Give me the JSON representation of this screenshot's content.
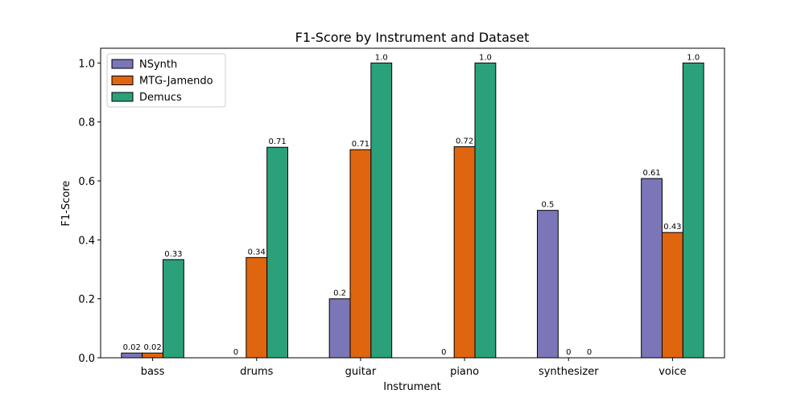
{
  "chart_data": {
    "type": "bar",
    "title": "F1-Score by Instrument and Dataset",
    "xlabel": "Instrument",
    "ylabel": "F1-Score",
    "ylim": [
      0,
      1.05
    ],
    "yticks": [
      "0.0",
      "0.2",
      "0.4",
      "0.6",
      "0.8",
      "1.0"
    ],
    "categories": [
      "bass",
      "drums",
      "guitar",
      "piano",
      "synthesizer",
      "voice"
    ],
    "series": [
      {
        "name": "NSynth",
        "color": "#7b76b8",
        "values": [
          0.016,
          0,
          0.2,
          0,
          0.5,
          0.608
        ],
        "labels": [
          "0.02",
          "0",
          "0.2",
          "0",
          "0.5",
          "0.61"
        ]
      },
      {
        "name": "MTG-Jamendo",
        "color": "#df650f",
        "values": [
          0.016,
          0.34,
          0.706,
          0.716,
          0,
          0.425
        ],
        "labels": [
          "0.02",
          "0.34",
          "0.71",
          "0.72",
          "0",
          "0.43"
        ]
      },
      {
        "name": "Demucs",
        "color": "#2aa17b",
        "values": [
          0.333,
          0.714,
          1.0,
          1.0,
          0,
          1.0
        ],
        "labels": [
          "0.33",
          "0.71",
          "1.0",
          "1.0",
          "0",
          "1.0"
        ]
      }
    ],
    "legend": "top-left",
    "grid": false
  }
}
